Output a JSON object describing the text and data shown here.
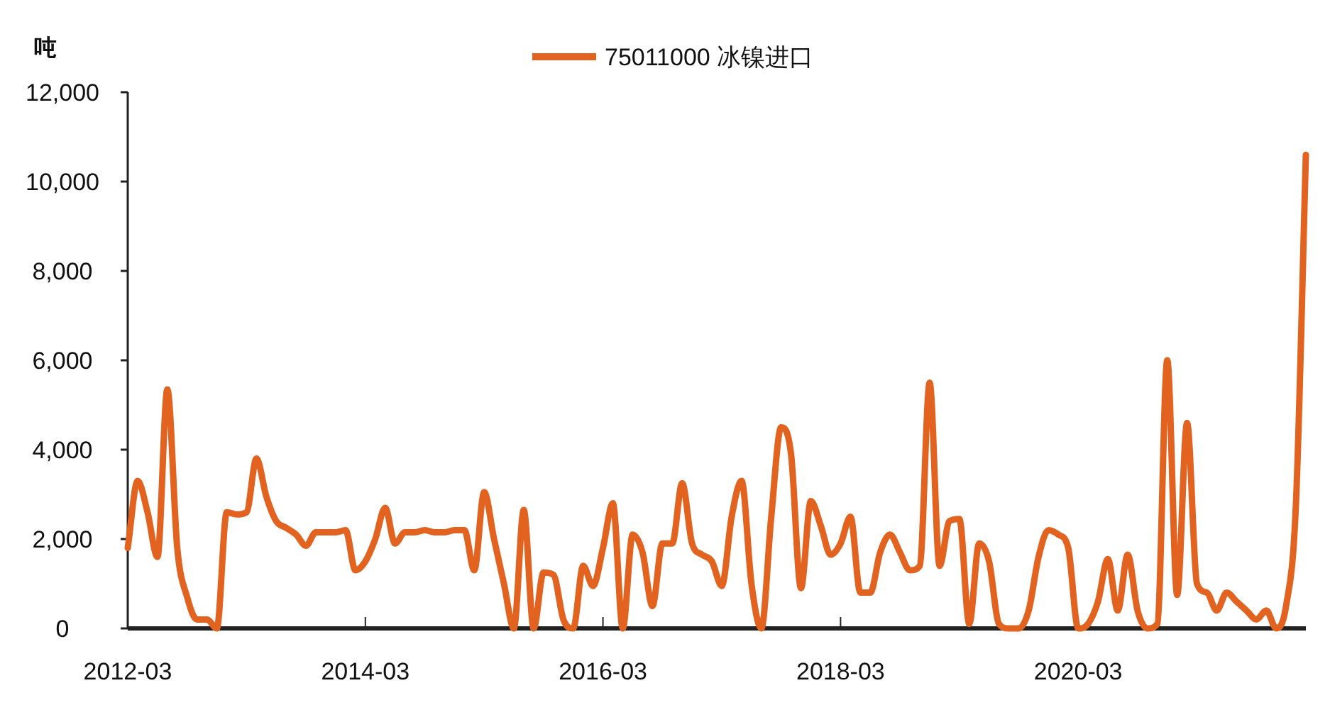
{
  "chart_data": {
    "type": "line",
    "ylabel": "吨",
    "legend": "top",
    "grid": false,
    "line_style": "solid",
    "marker": "none",
    "xlim": [
      "2012-03",
      "2022-02"
    ],
    "xticks": [
      "2012-03",
      "2014-03",
      "2016-03",
      "2018-03",
      "2020-03"
    ],
    "ylim": [
      0,
      12000
    ],
    "yticks": [
      {
        "value": 0,
        "label": "0"
      },
      {
        "value": 2000,
        "label": "2,000"
      },
      {
        "value": 4000,
        "label": "4,000"
      },
      {
        "value": 6000,
        "label": "6,000"
      },
      {
        "value": 8000,
        "label": "8,000"
      },
      {
        "value": 10000,
        "label": "10,000"
      },
      {
        "value": 12000,
        "label": "12,000"
      }
    ],
    "x": [
      "2012-03",
      "2012-04",
      "2012-05",
      "2012-06",
      "2012-07",
      "2012-08",
      "2012-09",
      "2012-10",
      "2012-11",
      "2012-12",
      "2013-01",
      "2013-02",
      "2013-03",
      "2013-04",
      "2013-05",
      "2013-06",
      "2013-07",
      "2013-08",
      "2013-09",
      "2013-10",
      "2013-11",
      "2013-12",
      "2014-01",
      "2014-02",
      "2014-03",
      "2014-04",
      "2014-05",
      "2014-06",
      "2014-07",
      "2014-08",
      "2014-09",
      "2014-10",
      "2014-11",
      "2014-12",
      "2015-01",
      "2015-02",
      "2015-03",
      "2015-04",
      "2015-05",
      "2015-06",
      "2015-07",
      "2015-08",
      "2015-09",
      "2015-10",
      "2015-11",
      "2015-12",
      "2016-01",
      "2016-02",
      "2016-03",
      "2016-04",
      "2016-05",
      "2016-06",
      "2016-07",
      "2016-08",
      "2016-09",
      "2016-10",
      "2016-11",
      "2016-12",
      "2017-01",
      "2017-02",
      "2017-03",
      "2017-04",
      "2017-05",
      "2017-06",
      "2017-07",
      "2017-08",
      "2017-09",
      "2017-10",
      "2017-11",
      "2017-12",
      "2018-01",
      "2018-02",
      "2018-03",
      "2018-04",
      "2018-05",
      "2018-06",
      "2018-07",
      "2018-08",
      "2018-09",
      "2018-10",
      "2018-11",
      "2018-12",
      "2019-01",
      "2019-02",
      "2019-03",
      "2019-04",
      "2019-05",
      "2019-06",
      "2019-07",
      "2019-08",
      "2019-09",
      "2019-10",
      "2019-11",
      "2019-12",
      "2020-01",
      "2020-02",
      "2020-03",
      "2020-04",
      "2020-05",
      "2020-06",
      "2020-07",
      "2020-08",
      "2020-09",
      "2020-10",
      "2020-11",
      "2020-12",
      "2021-01",
      "2021-02",
      "2021-03",
      "2021-04",
      "2021-05",
      "2021-06",
      "2021-07",
      "2021-08",
      "2021-09",
      "2021-10",
      "2021-11",
      "2021-12",
      "2022-01",
      "2022-02"
    ],
    "series": [
      {
        "name": "75011000 冰镍进口",
        "color": "#e2621f",
        "values": [
          1800,
          3300,
          2600,
          1600,
          5350,
          1800,
          700,
          200,
          200,
          0,
          2600,
          2550,
          2600,
          3800,
          2950,
          2400,
          2250,
          2100,
          1850,
          2150,
          2150,
          2150,
          2200,
          1300,
          1500,
          2000,
          2700,
          1900,
          2150,
          2150,
          2200,
          2150,
          2150,
          2200,
          2200,
          1300,
          3050,
          2000,
          1000,
          0,
          2650,
          0,
          1250,
          1200,
          200,
          0,
          1400,
          950,
          1800,
          2800,
          0,
          2100,
          1700,
          500,
          1900,
          1900,
          3250,
          1900,
          1650,
          1500,
          950,
          2500,
          3300,
          1000,
          0,
          2500,
          4500,
          3900,
          900,
          2850,
          2300,
          1650,
          1900,
          2500,
          800,
          800,
          1700,
          2100,
          1700,
          1300,
          1400,
          5500,
          1400,
          2400,
          2450,
          100,
          1900,
          1500,
          100,
          0,
          0,
          400,
          1600,
          2200,
          2100,
          1800,
          0,
          100,
          600,
          1550,
          400,
          1650,
          400,
          0,
          100,
          6000,
          750,
          4600,
          1000,
          800,
          400,
          800,
          600,
          400,
          200,
          400,
          0,
          500,
          2800,
          10600
        ]
      }
    ]
  }
}
